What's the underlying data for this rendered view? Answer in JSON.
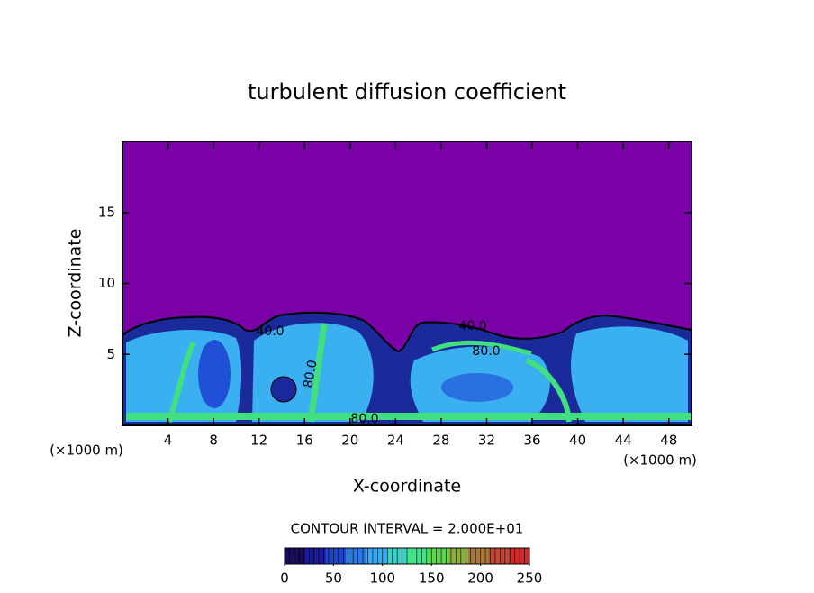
{
  "chart_data": {
    "type": "contour",
    "title": "turbulent diffusion coefficient",
    "x_label": "X-coordinate",
    "y_label": "Z-coordinate",
    "x_unit": "(×1000 m)",
    "x_unit_right": "(×1000 m)",
    "xlim": [
      0,
      50
    ],
    "ylim": [
      0,
      20
    ],
    "xticks": [
      4,
      8,
      12,
      16,
      20,
      24,
      28,
      32,
      36,
      40,
      44,
      48
    ],
    "yticks": [
      5,
      10,
      15
    ],
    "contour_labels": [
      "40.0",
      "40.0",
      "80.0",
      "80.0",
      "80.0"
    ],
    "colorbar": {
      "label": "CONTOUR INTERVAL = 2.000E+01",
      "lim": [
        0,
        250
      ],
      "ticks": [
        0,
        50,
        100,
        150,
        200,
        250
      ],
      "colors": [
        "#1a0a5a",
        "#1a1a9a",
        "#1f45c8",
        "#2a7ae6",
        "#39a9f0",
        "#3cd0c8",
        "#3ee68a",
        "#5ed650",
        "#8ab040",
        "#a87a3a",
        "#c04a38",
        "#d02a2a"
      ]
    }
  }
}
